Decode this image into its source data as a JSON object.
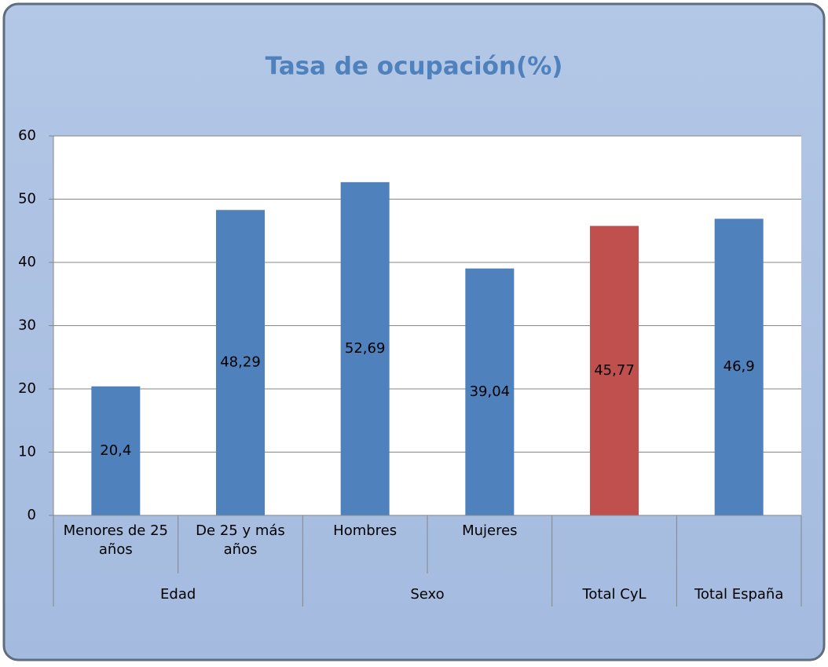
{
  "chart_data": {
    "type": "bar",
    "title": "Tasa de ocupación(%)",
    "categories": [
      "Menores de 25 años",
      "De 25 y más años",
      "Hombres",
      "Mujeres",
      null,
      null
    ],
    "groups": [
      "Edad",
      "Edad",
      "Sexo",
      "Sexo",
      "Total CyL",
      "Total España"
    ],
    "values": [
      20.4,
      48.29,
      52.69,
      39.04,
      45.77,
      46.9
    ],
    "value_labels": [
      "20,4",
      "48,29",
      "52,69",
      "39,04",
      "45,77",
      "46,9"
    ],
    "colors": [
      "#4f81bd",
      "#4f81bd",
      "#4f81bd",
      "#4f81bd",
      "#c0504d",
      "#4f81bd"
    ],
    "ylim": [
      0,
      60
    ],
    "yticks": [
      0,
      10,
      20,
      30,
      40,
      50,
      60
    ],
    "grid": true
  }
}
